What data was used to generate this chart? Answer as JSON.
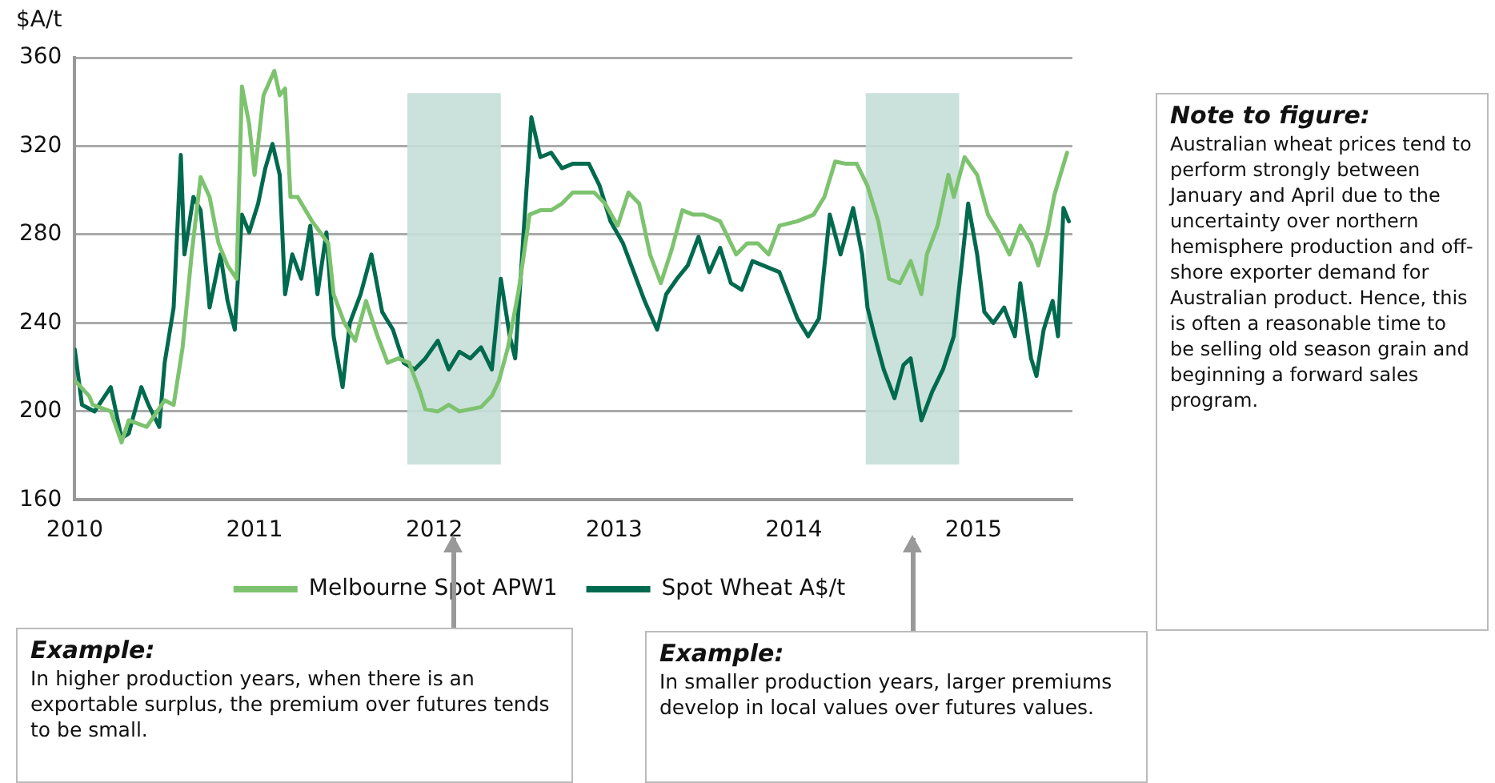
{
  "chart_data": {
    "type": "line",
    "ylabel": "$A/t",
    "xlim": [
      2010,
      2015.55
    ],
    "xticks": [
      2010,
      2011,
      2012,
      2013,
      2014,
      2015
    ],
    "ylim": [
      160,
      360
    ],
    "yticks": [
      160,
      200,
      240,
      280,
      320,
      360
    ],
    "grid": "y",
    "legend": "bottom",
    "marker": "none",
    "line_style": "solid",
    "series": [
      {
        "name": "Melbourne Spot APW1",
        "color": "#7dc36f",
        "x": [
          2010.0,
          2010.08,
          2010.1,
          2010.2,
          2010.26,
          2010.3,
          2010.4,
          2010.5,
          2010.55,
          2010.6,
          2010.65,
          2010.7,
          2010.75,
          2010.8,
          2010.85,
          2010.9,
          2010.93,
          2010.97,
          2011.0,
          2011.05,
          2011.11,
          2011.14,
          2011.17,
          2011.2,
          2011.24,
          2011.32,
          2011.41,
          2011.44,
          2011.5,
          2011.56,
          2011.62,
          2011.68,
          2011.74,
          2011.8,
          2011.86,
          2011.92,
          2011.95,
          2012.02,
          2012.08,
          2012.14,
          2012.2,
          2012.26,
          2012.32,
          2012.36,
          2012.41,
          2012.47,
          2012.53,
          2012.59,
          2012.65,
          2012.71,
          2012.77,
          2012.89,
          2012.95,
          2013.02,
          2013.08,
          2013.14,
          2013.2,
          2013.26,
          2013.32,
          2013.38,
          2013.44,
          2013.5,
          2013.59,
          2013.68,
          2013.74,
          2013.8,
          2013.86,
          2013.92,
          2014.02,
          2014.11,
          2014.17,
          2014.23,
          2014.29,
          2014.35,
          2014.41,
          2014.47,
          2014.53,
          2014.59,
          2014.65,
          2014.71,
          2014.74,
          2014.8,
          2014.86,
          2014.89,
          2014.95,
          2015.02,
          2015.08,
          2015.14,
          2015.2,
          2015.26,
          2015.32,
          2015.36,
          2015.41,
          2015.45,
          2015.52
        ],
        "values": [
          214,
          207,
          203,
          200,
          186,
          196,
          193,
          205,
          203,
          229,
          271,
          306,
          297,
          276,
          266,
          260,
          347,
          330,
          307,
          343,
          354,
          343,
          346,
          297,
          297,
          286,
          276,
          253,
          240,
          232,
          250,
          235,
          222,
          224,
          222,
          209,
          201,
          200,
          203,
          200,
          201,
          202,
          207,
          214,
          229,
          255,
          289,
          291,
          291,
          294,
          299,
          299,
          294,
          284,
          299,
          294,
          271,
          258,
          273,
          291,
          289,
          289,
          286,
          271,
          276,
          276,
          271,
          284,
          286,
          289,
          297,
          313,
          312,
          312,
          302,
          286,
          260,
          258,
          268,
          253,
          271,
          284,
          307,
          297,
          315,
          307,
          289,
          281,
          271,
          284,
          276,
          266,
          281,
          298,
          317
        ]
      },
      {
        "name": "Spot Wheat A$/t",
        "color": "#006a4e",
        "x": [
          2010.0,
          2010.04,
          2010.11,
          2010.2,
          2010.26,
          2010.3,
          2010.37,
          2010.41,
          2010.47,
          2010.5,
          2010.55,
          2010.59,
          2010.61,
          2010.66,
          2010.7,
          2010.75,
          2010.81,
          2010.85,
          2010.89,
          2010.93,
          2010.97,
          2011.02,
          2011.06,
          2011.1,
          2011.14,
          2011.17,
          2011.21,
          2011.26,
          2011.31,
          2011.35,
          2011.4,
          2011.44,
          2011.49,
          2011.53,
          2011.59,
          2011.65,
          2011.71,
          2011.77,
          2011.83,
          2011.89,
          2011.95,
          2012.02,
          2012.08,
          2012.14,
          2012.2,
          2012.26,
          2012.32,
          2012.37,
          2012.42,
          2012.45,
          2012.48,
          2012.51,
          2012.54,
          2012.59,
          2012.65,
          2012.71,
          2012.77,
          2012.86,
          2012.92,
          2012.98,
          2013.05,
          2013.11,
          2013.17,
          2013.24,
          2013.29,
          2013.35,
          2013.41,
          2013.47,
          2013.53,
          2013.59,
          2013.65,
          2013.71,
          2013.77,
          2013.83,
          2013.92,
          2014.02,
          2014.08,
          2014.14,
          2014.2,
          2014.26,
          2014.33,
          2014.38,
          2014.41,
          2014.45,
          2014.5,
          2014.56,
          2014.61,
          2014.65,
          2014.71,
          2014.77,
          2014.83,
          2014.89,
          2014.94,
          2014.97,
          2015.02,
          2015.06,
          2015.11,
          2015.17,
          2015.23,
          2015.26,
          2015.32,
          2015.35,
          2015.39,
          2015.44,
          2015.47,
          2015.5,
          2015.53
        ],
        "values": [
          228,
          203,
          200,
          211,
          188,
          190,
          211,
          203,
          193,
          222,
          247,
          316,
          271,
          297,
          291,
          247,
          271,
          250,
          237,
          289,
          281,
          294,
          310,
          321,
          307,
          253,
          271,
          260,
          284,
          253,
          281,
          234,
          211,
          240,
          253,
          271,
          245,
          237,
          222,
          219,
          224,
          232,
          219,
          227,
          224,
          229,
          219,
          260,
          234,
          224,
          260,
          297,
          333,
          315,
          317,
          310,
          312,
          312,
          302,
          286,
          276,
          263,
          250,
          237,
          253,
          260,
          266,
          279,
          263,
          274,
          258,
          255,
          268,
          266,
          263,
          242,
          234,
          242,
          289,
          271,
          292,
          271,
          247,
          234,
          219,
          206,
          221,
          224,
          196,
          209,
          219,
          234,
          271,
          294,
          271,
          245,
          240,
          247,
          234,
          258,
          224,
          216,
          237,
          250,
          234,
          292,
          286
        ]
      }
    ],
    "bands": [
      {
        "axis": "x",
        "from": 2011.85,
        "to": 2012.37,
        "color": "#c5ded8"
      },
      {
        "axis": "x",
        "from": 2014.4,
        "to": 2014.92,
        "color": "#c5ded8"
      }
    ],
    "annotations": [
      "Note to figure:",
      "Australian wheat prices tend to perform strongly between January and April due to the uncertainty over northern hemisphere production and off-shore exporter demand for Australian product.  Hence, this is often a reasonable time to be selling old season grain and beginning a forward sales program.",
      "Example:",
      "In higher production years, when there is an exportable surplus, the premium over futures tends to be small.",
      "Example:",
      "In smaller production years, larger premiums develop in local values over futures values."
    ]
  }
}
